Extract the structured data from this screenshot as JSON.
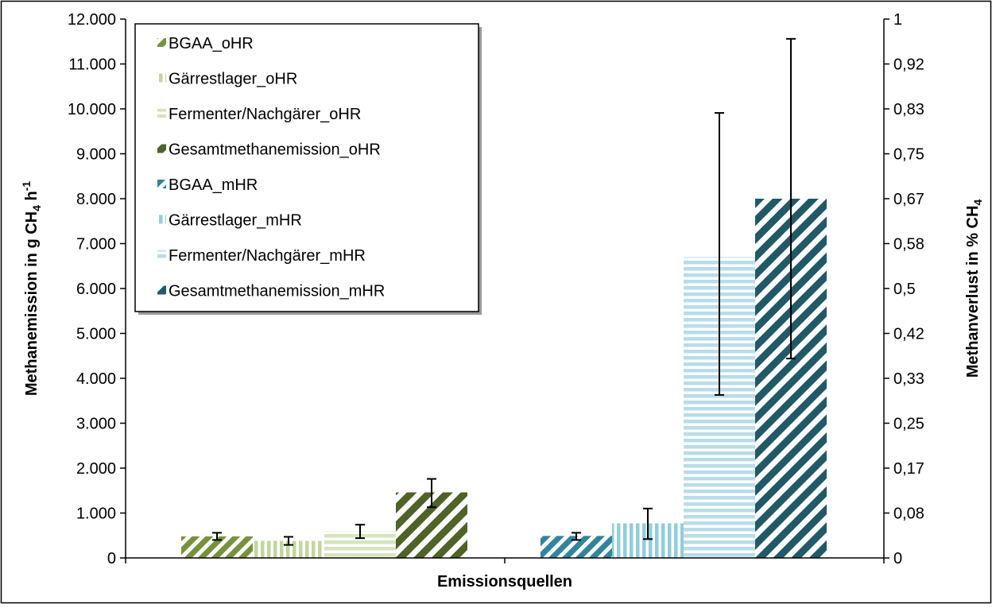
{
  "chart_data": {
    "type": "bar",
    "title": "",
    "xlabel": "Emissionsquellen",
    "ylabel": {
      "main": "Methanemission in g CH",
      "sub": "4",
      "mid": " h",
      "sup": "-1"
    },
    "y2label": {
      "main": "Methanverlust in % CH",
      "sub": "4"
    },
    "ylim": [
      0,
      12000
    ],
    "y_ticks": [
      "0",
      "1.000",
      "2.000",
      "3.000",
      "4.000",
      "5.000",
      "6.000",
      "7.000",
      "8.000",
      "9.000",
      "10.000",
      "11.000",
      "12.000"
    ],
    "y2_ticks": [
      "0",
      "0,08",
      "0,17",
      "0,25",
      "0,33",
      "0,42",
      "0,5",
      "0,58",
      "0,67",
      "0,75",
      "0,83",
      "0,92",
      "1"
    ],
    "groups": [
      "oHR",
      "mHR"
    ],
    "legend_position": "top-left",
    "grid": false,
    "series": [
      {
        "name": "BGAA_oHR",
        "group": 0,
        "value": 480,
        "err_low": 400,
        "err_high": 560,
        "color": "#76923c",
        "pattern": "diag"
      },
      {
        "name": "Gärrestlager_oHR",
        "group": 0,
        "value": 380,
        "err_low": 290,
        "err_high": 470,
        "color": "#c3d69b",
        "pattern": "vert"
      },
      {
        "name": "Fermenter/Nachgärer_oHR",
        "group": 0,
        "value": 600,
        "err_low": 440,
        "err_high": 740,
        "color": "#d7e4bd",
        "pattern": "horiz"
      },
      {
        "name": "Gesamtmethanemission_oHR",
        "group": 0,
        "value": 1460,
        "err_low": 1130,
        "err_high": 1760,
        "color": "#4f6228",
        "pattern": "wide"
      },
      {
        "name": "BGAA_mHR",
        "group": 1,
        "value": 490,
        "err_low": 400,
        "err_high": 560,
        "color": "#31849b",
        "pattern": "diag"
      },
      {
        "name": "Gärrestlager_mHR",
        "group": 1,
        "value": 770,
        "err_low": 420,
        "err_high": 1100,
        "color": "#92cddc",
        "pattern": "vert"
      },
      {
        "name": "Fermenter/Nachgärer_mHR",
        "group": 1,
        "value": 6700,
        "err_low": 3630,
        "err_high": 9910,
        "color": "#b7dde8",
        "pattern": "horiz"
      },
      {
        "name": "Gesamtmethanemission_mHR",
        "group": 1,
        "value": 8000,
        "err_low": 4440,
        "err_high": 11560,
        "color": "#215967",
        "pattern": "wide"
      }
    ]
  }
}
